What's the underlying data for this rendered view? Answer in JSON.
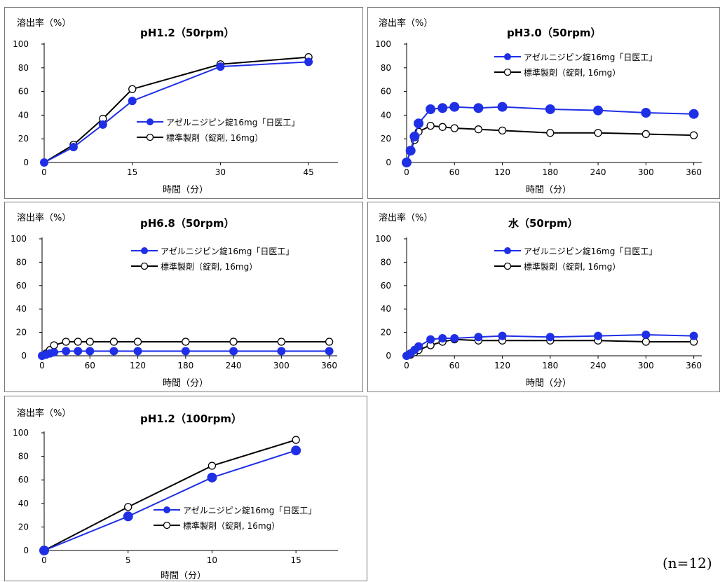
{
  "colors": {
    "test": "#1f2fe6",
    "reference": "#000000"
  },
  "legend_labels": {
    "test": "アゼルニジピン錠16mg「日医工」",
    "reference": "標準製剤（錠剤, 16mg）"
  },
  "note": "(n=12)",
  "chart_data": [
    {
      "type": "line",
      "title": "pH1.2（50rpm）",
      "ylabel": "溶出率（%）",
      "xlabel": "時間（分）",
      "ylim": [
        0,
        100
      ],
      "yticks": [
        0,
        20,
        40,
        60,
        80,
        100
      ],
      "xlim": [
        0,
        50
      ],
      "xticks": [
        0,
        15,
        30,
        45
      ],
      "legend_position": "center-right",
      "series": [
        {
          "name": "アゼルニジピン錠16mg「日医工」",
          "x": [
            0,
            5,
            10,
            15,
            30,
            45
          ],
          "y": [
            0,
            13,
            32,
            52,
            81,
            85
          ]
        },
        {
          "name": "標準製剤（錠剤, 16mg）",
          "x": [
            0,
            5,
            10,
            15,
            30,
            45
          ],
          "y": [
            0,
            15,
            37,
            62,
            83,
            89
          ]
        }
      ]
    },
    {
      "type": "line",
      "title": "pH3.0（50rpm）",
      "ylabel": "溶出率（%）",
      "xlabel": "時間（分）",
      "ylim": [
        0,
        100
      ],
      "yticks": [
        0,
        20,
        40,
        60,
        80,
        100
      ],
      "xlim": [
        0,
        370
      ],
      "xticks": [
        0,
        60,
        120,
        180,
        240,
        300,
        360
      ],
      "legend_position": "top-right",
      "series": [
        {
          "name": "アゼルニジピン錠16mg「日医工」",
          "x": [
            0,
            5,
            10,
            15,
            30,
            45,
            60,
            90,
            120,
            180,
            240,
            300,
            360
          ],
          "y": [
            0,
            10,
            22,
            33,
            45,
            46,
            47,
            46,
            47,
            45,
            44,
            42,
            41
          ]
        },
        {
          "name": "標準製剤（錠剤, 16mg）",
          "x": [
            0,
            5,
            10,
            15,
            30,
            45,
            60,
            90,
            120,
            180,
            240,
            300,
            360
          ],
          "y": [
            0,
            10,
            19,
            26,
            31,
            30,
            29,
            28,
            27,
            25,
            25,
            24,
            23
          ]
        }
      ]
    },
    {
      "type": "line",
      "title": "pH6.8（50rpm）",
      "ylabel": "溶出率（%）",
      "xlabel": "時間（分）",
      "ylim": [
        0,
        100
      ],
      "yticks": [
        0,
        20,
        40,
        60,
        80,
        100
      ],
      "xlim": [
        0,
        370
      ],
      "xticks": [
        0,
        60,
        120,
        180,
        240,
        300,
        360
      ],
      "legend_position": "top-right",
      "series": [
        {
          "name": "アゼルニジピン錠16mg「日医工」",
          "x": [
            0,
            5,
            10,
            15,
            30,
            45,
            60,
            90,
            120,
            180,
            240,
            300,
            360
          ],
          "y": [
            0,
            1,
            2,
            3,
            4,
            4,
            4,
            4,
            4,
            4,
            4,
            4,
            4
          ]
        },
        {
          "name": "標準製剤（錠剤, 16mg）",
          "x": [
            0,
            5,
            10,
            15,
            30,
            45,
            60,
            90,
            120,
            180,
            240,
            300,
            360
          ],
          "y": [
            0,
            2,
            5,
            9,
            12,
            12,
            12,
            12,
            12,
            12,
            12,
            12,
            12
          ]
        }
      ]
    },
    {
      "type": "line",
      "title": "水（50rpm）",
      "ylabel": "溶出率（%）",
      "xlabel": "時間（分）",
      "ylim": [
        0,
        100
      ],
      "yticks": [
        0,
        20,
        40,
        60,
        80,
        100
      ],
      "xlim": [
        0,
        370
      ],
      "xticks": [
        0,
        60,
        120,
        180,
        240,
        300,
        360
      ],
      "legend_position": "top-right",
      "series": [
        {
          "name": "アゼルニジピン錠16mg「日医工」",
          "x": [
            0,
            5,
            10,
            15,
            30,
            45,
            60,
            90,
            120,
            180,
            240,
            300,
            360
          ],
          "y": [
            0,
            2,
            5,
            8,
            14,
            15,
            15,
            16,
            17,
            16,
            17,
            18,
            17
          ]
        },
        {
          "name": "標準製剤（錠剤, 16mg）",
          "x": [
            0,
            5,
            10,
            15,
            30,
            45,
            60,
            90,
            120,
            180,
            240,
            300,
            360
          ],
          "y": [
            0,
            1,
            3,
            5,
            9,
            12,
            14,
            13,
            13,
            13,
            13,
            12,
            12
          ]
        }
      ]
    },
    {
      "type": "line",
      "title": "pH1.2（100rpm）",
      "ylabel": "溶出率（%）",
      "xlabel": "時間（分）",
      "ylim": [
        0,
        100
      ],
      "yticks": [
        0,
        20,
        40,
        60,
        80,
        100
      ],
      "xlim": [
        0,
        17.5
      ],
      "xticks": [
        0,
        5,
        10,
        15
      ],
      "legend_position": "center-right",
      "series": [
        {
          "name": "アゼルニジピン錠16mg「日医工」",
          "x": [
            0,
            5,
            10,
            15
          ],
          "y": [
            0,
            29,
            62,
            85
          ]
        },
        {
          "name": "標準製剤（錠剤, 16mg）",
          "x": [
            0,
            5,
            10,
            15
          ],
          "y": [
            0,
            37,
            72,
            94
          ]
        }
      ]
    }
  ]
}
